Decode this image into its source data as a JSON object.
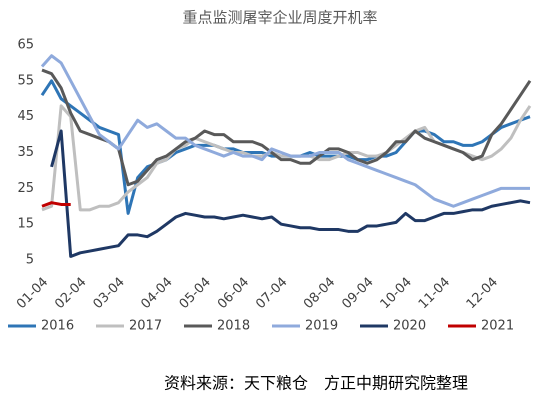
{
  "chart_data": {
    "type": "line",
    "title": "重点监测屠宰企业周度开机率",
    "source": "资料来源：天下粮仓　方正中期研究院整理",
    "categories": [
      "01-04",
      null,
      null,
      null,
      "02-04",
      null,
      null,
      null,
      "03-04",
      null,
      null,
      null,
      null,
      "04-04",
      null,
      null,
      null,
      "05-04",
      null,
      null,
      null,
      "06-04",
      null,
      null,
      null,
      "07-04",
      null,
      null,
      null,
      null,
      "08-04",
      null,
      null,
      null,
      "09-04",
      null,
      null,
      null,
      "10-04",
      null,
      null,
      null,
      "11-04",
      null,
      null,
      null,
      null,
      "12-04",
      null,
      null,
      null,
      null
    ],
    "ylim": [
      5,
      65
    ],
    "yticks": [
      5,
      15,
      25,
      35,
      45,
      55,
      65
    ],
    "grid": false,
    "legend": "bottom",
    "series": [
      {
        "name": "2016",
        "color": "#2e75b6",
        "values": [
          51,
          55,
          50,
          48,
          46,
          44,
          42,
          41,
          40,
          18,
          28,
          31,
          32,
          33,
          35,
          36,
          37,
          37,
          37,
          36,
          36,
          35,
          35,
          35,
          34,
          34,
          34,
          34,
          35,
          34,
          34,
          34,
          34,
          33,
          33,
          34,
          34,
          35,
          38,
          41,
          41,
          40,
          38,
          38,
          37,
          37,
          38,
          40,
          42,
          43,
          44,
          45
        ]
      },
      {
        "name": "2017",
        "color": "#bfbfbf",
        "values": [
          19,
          20,
          48,
          45,
          19,
          19,
          20,
          20,
          21,
          24,
          26,
          28,
          32,
          33,
          36,
          37,
          39,
          38,
          37,
          36,
          35,
          35,
          34,
          34,
          35,
          34,
          34,
          34,
          34,
          33,
          33,
          34,
          35,
          35,
          34,
          34,
          35,
          37,
          39,
          41,
          42,
          38,
          37,
          36,
          35,
          34,
          33,
          34,
          36,
          39,
          44,
          48
        ]
      },
      {
        "name": "2018",
        "color": "#595959",
        "values": [
          58,
          57,
          53,
          46,
          41,
          40,
          39,
          38,
          36,
          26,
          27,
          30,
          33,
          34,
          36,
          38,
          39,
          41,
          40,
          40,
          38,
          38,
          38,
          37,
          35,
          33,
          33,
          32,
          32,
          34,
          36,
          36,
          35,
          33,
          32,
          33,
          35,
          38,
          38,
          41,
          39,
          38,
          37,
          36,
          35,
          33,
          34,
          40,
          43,
          47,
          51,
          55
        ]
      },
      {
        "name": "2019",
        "color": "#8faadc",
        "values": [
          59,
          62,
          60,
          55,
          50,
          45,
          40,
          38,
          36,
          40,
          44,
          42,
          43,
          41,
          39,
          39,
          37,
          36,
          35,
          34,
          35,
          34,
          34,
          33,
          36,
          35,
          34,
          34,
          34,
          35,
          35,
          35,
          33,
          32,
          31,
          30,
          29,
          28,
          27,
          26,
          24,
          22,
          21,
          20,
          21,
          22,
          23,
          24,
          25,
          25,
          25,
          25
        ]
      },
      {
        "name": "2020",
        "color": "#1f3864",
        "values": [
          null,
          31,
          41,
          6,
          7,
          7.5,
          8,
          8.5,
          9,
          12,
          12,
          11.5,
          13,
          15,
          17,
          18,
          17.5,
          17,
          17,
          16.5,
          17,
          17.5,
          17,
          16.5,
          17,
          15,
          14.5,
          14,
          14,
          13.5,
          13.5,
          13.5,
          13,
          13,
          14.5,
          14.5,
          15,
          15.5,
          18,
          16,
          16,
          17,
          18,
          18,
          18.5,
          19,
          19,
          20,
          20.5,
          21,
          21.5,
          21
        ]
      },
      {
        "name": "2021",
        "color": "#c00000",
        "values": [
          20,
          21,
          20.5,
          20.5,
          null,
          null,
          null,
          null,
          null,
          null,
          null,
          null,
          null,
          null,
          null,
          null,
          null,
          null,
          null,
          null,
          null,
          null,
          null,
          null,
          null,
          null,
          null,
          null,
          null,
          null,
          null,
          null,
          null,
          null,
          null,
          null,
          null,
          null,
          null,
          null,
          null,
          null,
          null,
          null,
          null,
          null,
          null,
          null,
          null,
          null,
          null,
          null
        ]
      }
    ]
  }
}
